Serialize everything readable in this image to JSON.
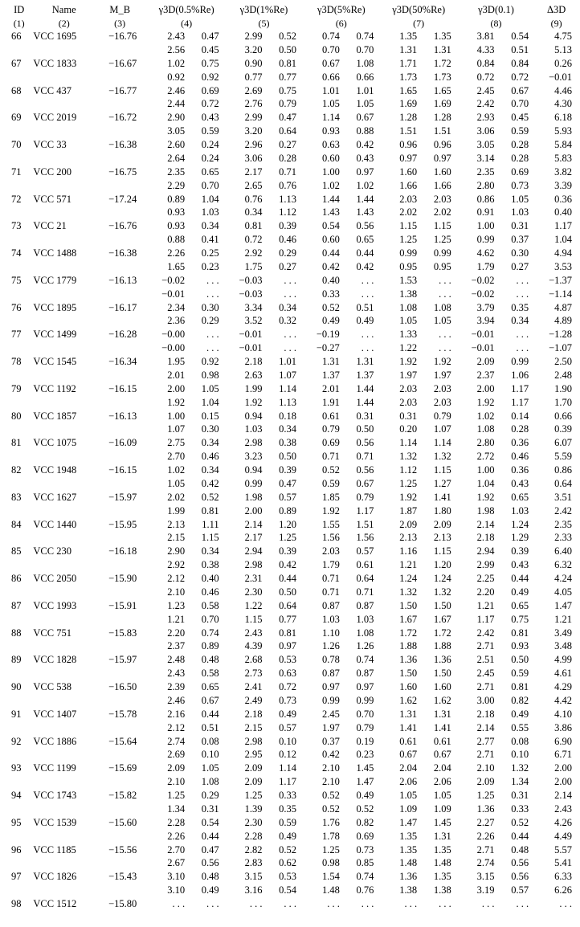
{
  "columns": {
    "h1": "ID",
    "h2": "Name",
    "h3": "M_B",
    "h4": "γ3D(0.5%Re)",
    "h5": "γ3D(1%Re)",
    "h6": "γ3D(5%Re)",
    "h7": "γ3D(50%Re)",
    "h8": "γ3D(0.1)",
    "h9": "Δ3D",
    "n1": "(1)",
    "n2": "(2)",
    "n3": "(3)",
    "n4": "(4)",
    "n5": "(5)",
    "n6": "(6)",
    "n7": "(7)",
    "n8": "(8)",
    "n9": "(9)"
  },
  "rows": [
    {
      "id": "66",
      "name": "VCC 1695",
      "mb": "−16.76",
      "a": [
        "2.43",
        "0.47",
        "2.99",
        "0.52",
        "0.74",
        "0.74",
        "1.35",
        "1.35",
        "3.81",
        "0.54",
        "4.75"
      ],
      "b": [
        "2.56",
        "0.45",
        "3.20",
        "0.50",
        "0.70",
        "0.70",
        "1.31",
        "1.31",
        "4.33",
        "0.51",
        "5.13"
      ]
    },
    {
      "id": "67",
      "name": "VCC 1833",
      "mb": "−16.67",
      "a": [
        "1.02",
        "0.75",
        "0.90",
        "0.81",
        "0.67",
        "1.08",
        "1.71",
        "1.72",
        "0.84",
        "0.84",
        "0.26"
      ],
      "b": [
        "0.92",
        "0.92",
        "0.77",
        "0.77",
        "0.66",
        "0.66",
        "1.73",
        "1.73",
        "0.72",
        "0.72",
        "−0.01"
      ]
    },
    {
      "id": "68",
      "name": "VCC 437",
      "mb": "−16.77",
      "a": [
        "2.46",
        "0.69",
        "2.69",
        "0.75",
        "1.01",
        "1.01",
        "1.65",
        "1.65",
        "2.45",
        "0.67",
        "4.46"
      ],
      "b": [
        "2.44",
        "0.72",
        "2.76",
        "0.79",
        "1.05",
        "1.05",
        "1.69",
        "1.69",
        "2.42",
        "0.70",
        "4.30"
      ]
    },
    {
      "id": "69",
      "name": "VCC 2019",
      "mb": "−16.72",
      "a": [
        "2.90",
        "0.43",
        "2.99",
        "0.47",
        "1.14",
        "0.67",
        "1.28",
        "1.28",
        "2.93",
        "0.45",
        "6.18"
      ],
      "b": [
        "3.05",
        "0.59",
        "3.20",
        "0.64",
        "0.93",
        "0.88",
        "1.51",
        "1.51",
        "3.06",
        "0.59",
        "5.93"
      ]
    },
    {
      "id": "70",
      "name": "VCC 33",
      "mb": "−16.38",
      "a": [
        "2.60",
        "0.24",
        "2.96",
        "0.27",
        "0.63",
        "0.42",
        "0.96",
        "0.96",
        "3.05",
        "0.28",
        "5.84"
      ],
      "b": [
        "2.64",
        "0.24",
        "3.06",
        "0.28",
        "0.60",
        "0.43",
        "0.97",
        "0.97",
        "3.14",
        "0.28",
        "5.83"
      ]
    },
    {
      "id": "71",
      "name": "VCC 200",
      "mb": "−16.75",
      "a": [
        "2.35",
        "0.65",
        "2.17",
        "0.71",
        "1.00",
        "0.97",
        "1.60",
        "1.60",
        "2.35",
        "0.69",
        "3.82"
      ],
      "b": [
        "2.29",
        "0.70",
        "2.65",
        "0.76",
        "1.02",
        "1.02",
        "1.66",
        "1.66",
        "2.80",
        "0.73",
        "3.39"
      ]
    },
    {
      "id": "72",
      "name": "VCC 571",
      "mb": "−17.24",
      "a": [
        "0.89",
        "1.04",
        "0.76",
        "1.13",
        "1.44",
        "1.44",
        "2.03",
        "2.03",
        "0.86",
        "1.05",
        "0.36"
      ],
      "b": [
        "0.93",
        "1.03",
        "0.34",
        "1.12",
        "1.43",
        "1.43",
        "2.02",
        "2.02",
        "0.91",
        "1.03",
        "0.40"
      ]
    },
    {
      "id": "73",
      "name": "VCC 21",
      "mb": "−16.76",
      "a": [
        "0.93",
        "0.34",
        "0.81",
        "0.39",
        "0.54",
        "0.56",
        "1.15",
        "1.15",
        "1.00",
        "0.31",
        "1.17"
      ],
      "b": [
        "0.88",
        "0.41",
        "0.72",
        "0.46",
        "0.60",
        "0.65",
        "1.25",
        "1.25",
        "0.99",
        "0.37",
        "1.04"
      ]
    },
    {
      "id": "74",
      "name": "VCC 1488",
      "mb": "−16.38",
      "a": [
        "2.26",
        "0.25",
        "2.92",
        "0.29",
        "0.44",
        "0.44",
        "0.99",
        "0.99",
        "4.62",
        "0.30",
        "4.94"
      ],
      "b": [
        "1.65",
        "0.23",
        "1.75",
        "0.27",
        "0.42",
        "0.42",
        "0.95",
        "0.95",
        "1.79",
        "0.27",
        "3.53"
      ]
    },
    {
      "id": "75",
      "name": "VCC 1779",
      "mb": "−16.13",
      "a": [
        "−0.02",
        ". . .",
        "−0.03",
        ". . .",
        "0.40",
        ". . .",
        "1.53",
        ". . .",
        "−0.02",
        ". . .",
        "−1.37"
      ],
      "b": [
        "−0.01",
        ". . .",
        "−0.03",
        ". . .",
        "0.33",
        ". . .",
        "1.38",
        ". . .",
        "−0.02",
        ". . .",
        "−1.14"
      ]
    },
    {
      "id": "76",
      "name": "VCC 1895",
      "mb": "−16.17",
      "a": [
        "2.34",
        "0.30",
        "3.34",
        "0.34",
        "0.52",
        "0.51",
        "1.08",
        "1.08",
        "3.79",
        "0.35",
        "4.87"
      ],
      "b": [
        "2.36",
        "0.29",
        "3.52",
        "0.32",
        "0.49",
        "0.49",
        "1.05",
        "1.05",
        "3.94",
        "0.34",
        "4.89"
      ]
    },
    {
      "id": "77",
      "name": "VCC 1499",
      "mb": "−16.28",
      "a": [
        "−0.00",
        ". . .",
        "−0.01",
        ". . .",
        "−0.19",
        ". . .",
        "1.33",
        ". . .",
        "−0.01",
        ". . .",
        "−1.28"
      ],
      "b": [
        "−0.00",
        ". . .",
        "−0.01",
        ". . .",
        "−0.27",
        ". . .",
        "1.22",
        ". . .",
        "−0.01",
        ". . .",
        "−1.07"
      ]
    },
    {
      "id": "78",
      "name": "VCC 1545",
      "mb": "−16.34",
      "a": [
        "1.95",
        "0.92",
        "2.18",
        "1.01",
        "1.31",
        "1.31",
        "1.92",
        "1.92",
        "2.09",
        "0.99",
        "2.50"
      ],
      "b": [
        "2.01",
        "0.98",
        "2.63",
        "1.07",
        "1.37",
        "1.37",
        "1.97",
        "1.97",
        "2.37",
        "1.06",
        "2.48"
      ]
    },
    {
      "id": "79",
      "name": "VCC 1192",
      "mb": "−16.15",
      "a": [
        "2.00",
        "1.05",
        "1.99",
        "1.14",
        "2.01",
        "1.44",
        "2.03",
        "2.03",
        "2.00",
        "1.17",
        "1.90"
      ],
      "b": [
        "1.92",
        "1.04",
        "1.92",
        "1.13",
        "1.91",
        "1.44",
        "2.03",
        "2.03",
        "1.92",
        "1.17",
        "1.70"
      ]
    },
    {
      "id": "80",
      "name": "VCC 1857",
      "mb": "−16.13",
      "a": [
        "1.00",
        "0.15",
        "0.94",
        "0.18",
        "0.61",
        "0.31",
        "0.31",
        "0.79",
        "1.02",
        "0.14",
        "0.66"
      ],
      "b": [
        "1.07",
        "0.30",
        "1.03",
        "0.34",
        "0.79",
        "0.50",
        "0.20",
        "1.07",
        "1.08",
        "0.28",
        "0.39"
      ]
    },
    {
      "id": "81",
      "name": "VCC 1075",
      "mb": "−16.09",
      "a": [
        "2.75",
        "0.34",
        "2.98",
        "0.38",
        "0.69",
        "0.56",
        "1.14",
        "1.14",
        "2.80",
        "0.36",
        "6.07"
      ],
      "b": [
        "2.70",
        "0.46",
        "3.23",
        "0.50",
        "0.71",
        "0.71",
        "1.32",
        "1.32",
        "2.72",
        "0.46",
        "5.59"
      ]
    },
    {
      "id": "82",
      "name": "VCC 1948",
      "mb": "−16.15",
      "a": [
        "1.02",
        "0.34",
        "0.94",
        "0.39",
        "0.52",
        "0.56",
        "1.12",
        "1.15",
        "1.00",
        "0.36",
        "0.86"
      ],
      "b": [
        "1.05",
        "0.42",
        "0.99",
        "0.47",
        "0.59",
        "0.67",
        "1.25",
        "1.27",
        "1.04",
        "0.43",
        "0.64"
      ]
    },
    {
      "id": "83",
      "name": "VCC 1627",
      "mb": "−15.97",
      "a": [
        "2.02",
        "0.52",
        "1.98",
        "0.57",
        "1.85",
        "0.79",
        "1.92",
        "1.41",
        "1.92",
        "0.65",
        "3.51"
      ],
      "b": [
        "1.99",
        "0.81",
        "2.00",
        "0.89",
        "1.92",
        "1.17",
        "1.87",
        "1.80",
        "1.98",
        "1.03",
        "2.42"
      ]
    },
    {
      "id": "84",
      "name": "VCC 1440",
      "mb": "−15.95",
      "a": [
        "2.13",
        "1.11",
        "2.14",
        "1.20",
        "1.55",
        "1.51",
        "2.09",
        "2.09",
        "2.14",
        "1.24",
        "2.35"
      ],
      "b": [
        "2.15",
        "1.15",
        "2.17",
        "1.25",
        "1.56",
        "1.56",
        "2.13",
        "2.13",
        "2.18",
        "1.29",
        "2.33"
      ]
    },
    {
      "id": "85",
      "name": "VCC 230",
      "mb": "−16.18",
      "a": [
        "2.90",
        "0.34",
        "2.94",
        "0.39",
        "2.03",
        "0.57",
        "1.16",
        "1.15",
        "2.94",
        "0.39",
        "6.40"
      ],
      "b": [
        "2.92",
        "0.38",
        "2.98",
        "0.42",
        "1.79",
        "0.61",
        "1.21",
        "1.20",
        "2.99",
        "0.43",
        "6.32"
      ]
    },
    {
      "id": "86",
      "name": "VCC 2050",
      "mb": "−15.90",
      "a": [
        "2.12",
        "0.40",
        "2.31",
        "0.44",
        "0.71",
        "0.64",
        "1.24",
        "1.24",
        "2.25",
        "0.44",
        "4.24"
      ],
      "b": [
        "2.10",
        "0.46",
        "2.30",
        "0.50",
        "0.71",
        "0.71",
        "1.32",
        "1.32",
        "2.20",
        "0.49",
        "4.05"
      ]
    },
    {
      "id": "87",
      "name": "VCC 1993",
      "mb": "−15.91",
      "a": [
        "1.23",
        "0.58",
        "1.22",
        "0.64",
        "0.87",
        "0.87",
        "1.50",
        "1.50",
        "1.21",
        "0.65",
        "1.47"
      ],
      "b": [
        "1.21",
        "0.70",
        "1.15",
        "0.77",
        "1.03",
        "1.03",
        "1.67",
        "1.67",
        "1.17",
        "0.75",
        "1.21"
      ]
    },
    {
      "id": "88",
      "name": "VCC 751",
      "mb": "−15.83",
      "a": [
        "2.20",
        "0.74",
        "2.43",
        "0.81",
        "1.10",
        "1.08",
        "1.72",
        "1.72",
        "2.42",
        "0.81",
        "3.49"
      ],
      "b": [
        "2.37",
        "0.89",
        "4.39",
        "0.97",
        "1.26",
        "1.26",
        "1.88",
        "1.88",
        "2.71",
        "0.93",
        "3.48"
      ]
    },
    {
      "id": "89",
      "name": "VCC 1828",
      "mb": "−15.97",
      "a": [
        "2.48",
        "0.48",
        "2.68",
        "0.53",
        "0.78",
        "0.74",
        "1.36",
        "1.36",
        "2.51",
        "0.50",
        "4.99"
      ],
      "b": [
        "2.43",
        "0.58",
        "2.73",
        "0.63",
        "0.87",
        "0.87",
        "1.50",
        "1.50",
        "2.45",
        "0.59",
        "4.61"
      ]
    },
    {
      "id": "90",
      "name": "VCC 538",
      "mb": "−16.50",
      "a": [
        "2.39",
        "0.65",
        "2.41",
        "0.72",
        "0.97",
        "0.97",
        "1.60",
        "1.60",
        "2.71",
        "0.81",
        "4.29"
      ],
      "b": [
        "2.46",
        "0.67",
        "2.49",
        "0.73",
        "0.99",
        "0.99",
        "1.62",
        "1.62",
        "3.00",
        "0.82",
        "4.42"
      ]
    },
    {
      "id": "91",
      "name": "VCC 1407",
      "mb": "−15.78",
      "a": [
        "2.16",
        "0.44",
        "2.18",
        "0.49",
        "2.45",
        "0.70",
        "1.31",
        "1.31",
        "2.18",
        "0.49",
        "4.10"
      ],
      "b": [
        "2.12",
        "0.51",
        "2.15",
        "0.57",
        "1.97",
        "0.79",
        "1.41",
        "1.41",
        "2.14",
        "0.55",
        "3.86"
      ]
    },
    {
      "id": "92",
      "name": "VCC 1886",
      "mb": "−15.64",
      "a": [
        "2.74",
        "0.08",
        "2.98",
        "0.10",
        "0.37",
        "0.19",
        "0.61",
        "0.61",
        "2.77",
        "0.08",
        "6.90"
      ],
      "b": [
        "2.69",
        "0.10",
        "2.95",
        "0.12",
        "0.42",
        "0.23",
        "0.67",
        "0.67",
        "2.71",
        "0.10",
        "6.71"
      ]
    },
    {
      "id": "93",
      "name": "VCC 1199",
      "mb": "−15.69",
      "a": [
        "2.09",
        "1.05",
        "2.09",
        "1.14",
        "2.10",
        "1.45",
        "2.04",
        "2.04",
        "2.10",
        "1.32",
        "2.00"
      ],
      "b": [
        "2.10",
        "1.08",
        "2.09",
        "1.17",
        "2.10",
        "1.47",
        "2.06",
        "2.06",
        "2.09",
        "1.34",
        "2.00"
      ]
    },
    {
      "id": "94",
      "name": "VCC 1743",
      "mb": "−15.82",
      "a": [
        "1.25",
        "0.29",
        "1.25",
        "0.33",
        "0.52",
        "0.49",
        "1.05",
        "1.05",
        "1.25",
        "0.31",
        "2.14"
      ],
      "b": [
        "1.34",
        "0.31",
        "1.39",
        "0.35",
        "0.52",
        "0.52",
        "1.09",
        "1.09",
        "1.36",
        "0.33",
        "2.43"
      ]
    },
    {
      "id": "95",
      "name": "VCC 1539",
      "mb": "−15.60",
      "a": [
        "2.28",
        "0.54",
        "2.30",
        "0.59",
        "1.76",
        "0.82",
        "1.47",
        "1.45",
        "2.27",
        "0.52",
        "4.26"
      ],
      "b": [
        "2.26",
        "0.44",
        "2.28",
        "0.49",
        "1.78",
        "0.69",
        "1.35",
        "1.31",
        "2.26",
        "0.44",
        "4.49"
      ]
    },
    {
      "id": "96",
      "name": "VCC 1185",
      "mb": "−15.56",
      "a": [
        "2.70",
        "0.47",
        "2.82",
        "0.52",
        "1.25",
        "0.73",
        "1.35",
        "1.35",
        "2.71",
        "0.48",
        "5.57"
      ],
      "b": [
        "2.67",
        "0.56",
        "2.83",
        "0.62",
        "0.98",
        "0.85",
        "1.48",
        "1.48",
        "2.74",
        "0.56",
        "5.41"
      ]
    },
    {
      "id": "97",
      "name": "VCC 1826",
      "mb": "−15.43",
      "a": [
        "3.10",
        "0.48",
        "3.15",
        "0.53",
        "1.54",
        "0.74",
        "1.36",
        "1.35",
        "3.15",
        "0.56",
        "6.33"
      ],
      "b": [
        "3.10",
        "0.49",
        "3.16",
        "0.54",
        "1.48",
        "0.76",
        "1.38",
        "1.38",
        "3.19",
        "0.57",
        "6.26"
      ]
    },
    {
      "id": "98",
      "name": "VCC 1512",
      "mb": "−15.80",
      "a": [
        ". . .",
        ". . .",
        ". . .",
        ". . .",
        ". . .",
        ". . .",
        ". . .",
        ". . .",
        ". . .",
        ". . .",
        ". . ."
      ],
      "b": null
    }
  ]
}
